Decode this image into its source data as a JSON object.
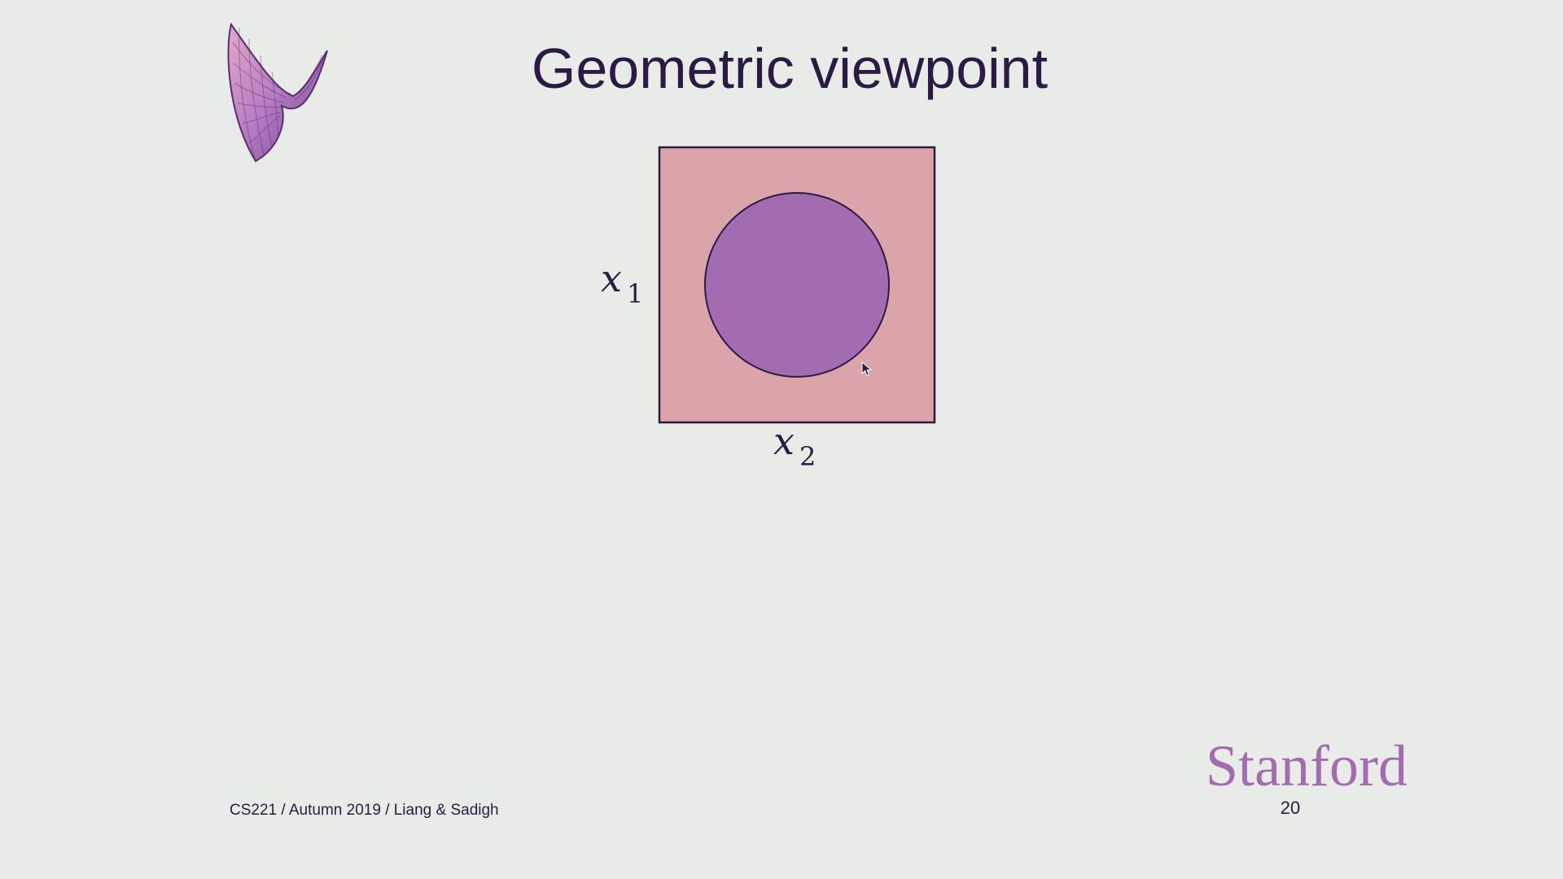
{
  "slide": {
    "title": "Geometric viewpoint",
    "footer": {
      "credit": "CS221 / Autumn 2019 / Liang & Sadigh",
      "institution": "Stanford",
      "page_number": "20"
    }
  },
  "diagram": {
    "x_axis_label": "x",
    "x_axis_subscript": "2",
    "y_axis_label": "x",
    "y_axis_subscript": "1",
    "colors": {
      "square_fill": "#dba3aa",
      "circle_fill": "#a36cb0",
      "outline": "#2b1a44"
    }
  },
  "icons": {
    "logo": "saddle-surface-icon",
    "pointer": "mouse-cursor-icon"
  }
}
